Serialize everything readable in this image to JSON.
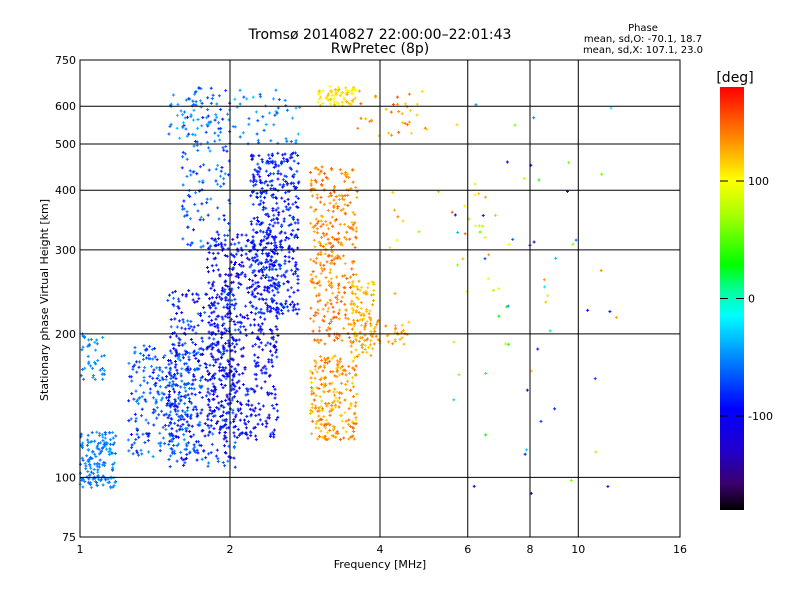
{
  "chart_data": {
    "type": "scatter",
    "title": "Tromsø 20140827 22:00:00–22:01:43",
    "subtitle": "RwPretec (8p)",
    "xlabel": "Frequency [MHz]",
    "ylabel": "Stationary phase Virtual Height [km]",
    "x_scale": "log",
    "y_scale": "log",
    "xlim": [
      1,
      16
    ],
    "ylim": [
      75,
      750
    ],
    "x_ticks": [
      1,
      2,
      4,
      6,
      8,
      10,
      16
    ],
    "y_ticks": [
      75,
      100,
      200,
      300,
      400,
      500,
      600,
      750
    ],
    "grid": true,
    "phase_box": {
      "title": "Phase",
      "line1": "mean, sd,O: -70.1, 18.7",
      "line2": "mean, sd,X: 107.1, 23.0"
    },
    "colorbar": {
      "label": "[deg]",
      "range": [
        -180,
        180
      ],
      "tick_values": [
        100,
        0,
        -100
      ],
      "tick_labels": [
        "100",
        "0",
        "-100"
      ]
    },
    "clusters": [
      {
        "f": [
          1.0,
          1.18
        ],
        "h": [
          95,
          125
        ],
        "phase": [
          -65,
          -40
        ],
        "n": 150
      },
      {
        "f": [
          1.0,
          1.12
        ],
        "h": [
          160,
          200
        ],
        "phase": [
          -60,
          -40
        ],
        "n": 40
      },
      {
        "f": [
          1.25,
          1.75
        ],
        "h": [
          110,
          190
        ],
        "phase": [
          -95,
          -45
        ],
        "n": 280
      },
      {
        "f": [
          1.5,
          2.05
        ],
        "h": [
          105,
          250
        ],
        "phase": [
          -115,
          -55
        ],
        "n": 380
      },
      {
        "f": [
          1.8,
          2.5
        ],
        "h": [
          120,
          330
        ],
        "phase": [
          -125,
          -70
        ],
        "n": 560
      },
      {
        "f": [
          2.2,
          2.75
        ],
        "h": [
          220,
          480
        ],
        "phase": [
          -110,
          -65
        ],
        "n": 420
      },
      {
        "f": [
          1.6,
          2.0
        ],
        "h": [
          300,
          660
        ],
        "phase": [
          -90,
          -40
        ],
        "n": 140
      },
      {
        "f": [
          1.5,
          2.8
        ],
        "h": [
          500,
          650
        ],
        "phase": [
          -70,
          -30
        ],
        "n": 90
      },
      {
        "f": [
          2.9,
          3.6
        ],
        "h": [
          190,
          450
        ],
        "phase": [
          120,
          155
        ],
        "n": 330
      },
      {
        "f": [
          2.9,
          3.6
        ],
        "h": [
          120,
          180
        ],
        "phase": [
          110,
          150
        ],
        "n": 220
      },
      {
        "f": [
          3.5,
          3.9
        ],
        "h": [
          180,
          260
        ],
        "phase": [
          110,
          135
        ],
        "n": 90
      },
      {
        "f": [
          3.0,
          3.6
        ],
        "h": [
          600,
          660
        ],
        "phase": [
          95,
          130
        ],
        "n": 70
      },
      {
        "f": [
          3.6,
          4.6
        ],
        "h": [
          190,
          215
        ],
        "phase": [
          115,
          145
        ],
        "n": 45
      },
      {
        "f": [
          3.6,
          5.0
        ],
        "h": [
          520,
          650
        ],
        "phase": [
          110,
          160
        ],
        "n": 35
      },
      {
        "f": [
          4.0,
          7.0
        ],
        "h": [
          240,
          420
        ],
        "phase": [
          60,
          150
        ],
        "n": 25
      },
      {
        "f": [
          5.5,
          12.0
        ],
        "h": [
          90,
          620
        ],
        "phase": [
          -140,
          140
        ],
        "n": 60
      }
    ]
  }
}
